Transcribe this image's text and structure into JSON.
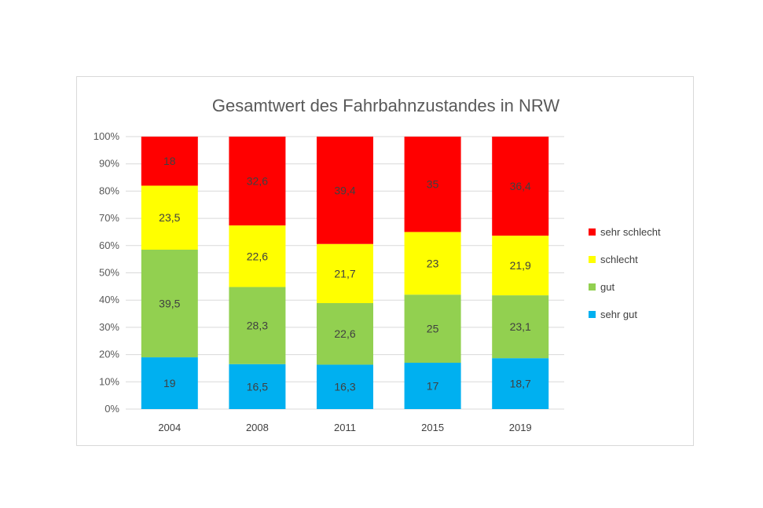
{
  "chart_data": {
    "type": "bar",
    "stacked": true,
    "percent": true,
    "title": "Gesamtwert des Fahrbahnzustandes in NRW",
    "categories": [
      "2004",
      "2008",
      "2011",
      "2015",
      "2019"
    ],
    "series": [
      {
        "name": "sehr gut",
        "color": "#00b0f0",
        "values": [
          19,
          16.5,
          16.3,
          17,
          18.7
        ],
        "labels": [
          "19",
          "16,5",
          "16,3",
          "17",
          "18,7"
        ]
      },
      {
        "name": "gut",
        "color": "#92d050",
        "values": [
          39.5,
          28.3,
          22.6,
          25,
          23.1
        ],
        "labels": [
          "39,5",
          "28,3",
          "22,6",
          "25",
          "23,1"
        ]
      },
      {
        "name": "schlecht",
        "color": "#ffff00",
        "values": [
          23.5,
          22.6,
          21.7,
          23,
          21.9
        ],
        "labels": [
          "23,5",
          "22,6",
          "21,7",
          "23",
          "21,9"
        ]
      },
      {
        "name": "sehr schlecht",
        "color": "#ff0000",
        "values": [
          18,
          32.6,
          39.4,
          35,
          36.4
        ],
        "labels": [
          "18",
          "32,6",
          "39,4",
          "35",
          "36,4"
        ]
      }
    ],
    "yticks": [
      "0%",
      "10%",
      "20%",
      "30%",
      "40%",
      "50%",
      "60%",
      "70%",
      "80%",
      "90%",
      "100%"
    ],
    "ylim": [
      0,
      100
    ],
    "grid": true,
    "legend": "right"
  }
}
